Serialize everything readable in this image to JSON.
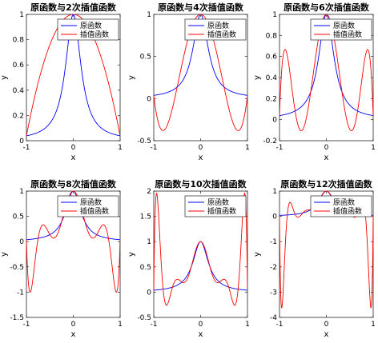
{
  "figure": {
    "function": "1/(1+25x^2)"
  },
  "legend": {
    "original": "原函数",
    "interp": "插值函数"
  },
  "colors": {
    "original": "#0000ff",
    "interp": "#ff0000",
    "axis": "#262626"
  },
  "chart_data": [
    {
      "type": "line",
      "title": "原函数与2次插值函数",
      "degree": 2,
      "xlabel": "x",
      "ylabel": "y",
      "xlim": [
        -1,
        1
      ],
      "ylim": [
        0,
        1
      ],
      "xticks": [
        -1,
        0,
        1
      ],
      "yticks": [
        0,
        0.2,
        0.4,
        0.6,
        0.8,
        1
      ],
      "xtick_labels": [
        "-1",
        "0",
        "1"
      ],
      "ytick_labels": [
        "0",
        "0.2",
        "0.4",
        "0.6",
        "0.8",
        "1"
      ],
      "legend_position": "top-right",
      "series": [
        {
          "name": "原函数",
          "color": "#0000ff"
        },
        {
          "name": "插值函数",
          "color": "#ff0000"
        }
      ]
    },
    {
      "type": "line",
      "title": "原函数与4次插值函数",
      "degree": 4,
      "xlabel": "x",
      "ylabel": "y",
      "xlim": [
        -1,
        1
      ],
      "ylim": [
        -0.5,
        1
      ],
      "xticks": [
        -1,
        0,
        1
      ],
      "yticks": [
        -0.5,
        0,
        0.5,
        1
      ],
      "xtick_labels": [
        "-1",
        "0",
        "1"
      ],
      "ytick_labels": [
        "-0.5",
        "0",
        "0.5",
        "1"
      ],
      "legend_position": "top-right",
      "series": [
        {
          "name": "原函数",
          "color": "#0000ff"
        },
        {
          "name": "插值函数",
          "color": "#ff0000"
        }
      ]
    },
    {
      "type": "line",
      "title": "原函数与6次插值函数",
      "degree": 6,
      "xlabel": "x",
      "ylabel": "y",
      "xlim": [
        -1,
        1
      ],
      "ylim": [
        -0.2,
        1
      ],
      "xticks": [
        -1,
        0,
        1
      ],
      "yticks": [
        -0.2,
        0,
        0.2,
        0.4,
        0.6,
        0.8,
        1
      ],
      "xtick_labels": [
        "-1",
        "0",
        "1"
      ],
      "ytick_labels": [
        "-0.2",
        "0",
        "0.2",
        "0.4",
        "0.6",
        "0.8",
        "1"
      ],
      "legend_position": "top-right",
      "series": [
        {
          "name": "原函数",
          "color": "#0000ff"
        },
        {
          "name": "插值函数",
          "color": "#ff0000"
        }
      ]
    },
    {
      "type": "line",
      "title": "原函数与8次插值函数",
      "degree": 8,
      "xlabel": "x",
      "ylabel": "y",
      "xlim": [
        -1,
        1
      ],
      "ylim": [
        -1.5,
        1
      ],
      "xticks": [
        -1,
        0,
        1
      ],
      "yticks": [
        -1.5,
        -1,
        -0.5,
        0,
        0.5,
        1
      ],
      "xtick_labels": [
        "-1",
        "0",
        "1"
      ],
      "ytick_labels": [
        "-1.5",
        "-1",
        "-0.5",
        "0",
        "0.5",
        "1"
      ],
      "legend_position": "top-right",
      "series": [
        {
          "name": "原函数",
          "color": "#0000ff"
        },
        {
          "name": "插值函数",
          "color": "#ff0000"
        }
      ]
    },
    {
      "type": "line",
      "title": "原函数与10次插值函数",
      "degree": 10,
      "xlabel": "x",
      "ylabel": "y",
      "xlim": [
        -1,
        1
      ],
      "ylim": [
        -0.5,
        2
      ],
      "xticks": [
        -1,
        0,
        1
      ],
      "yticks": [
        -0.5,
        0,
        0.5,
        1,
        1.5,
        2
      ],
      "xtick_labels": [
        "-1",
        "0",
        "1"
      ],
      "ytick_labels": [
        "-0.5",
        "0",
        "0.5",
        "1",
        "1.5",
        "2"
      ],
      "legend_position": "top-right",
      "series": [
        {
          "name": "原函数",
          "color": "#0000ff"
        },
        {
          "name": "插值函数",
          "color": "#ff0000"
        }
      ]
    },
    {
      "type": "line",
      "title": "原函数与12次插值函数",
      "degree": 12,
      "xlabel": "x",
      "ylabel": "y",
      "xlim": [
        -1,
        1
      ],
      "ylim": [
        -4,
        1
      ],
      "xticks": [
        -1,
        0,
        1
      ],
      "yticks": [
        -4,
        -3,
        -2,
        -1,
        0,
        1
      ],
      "xtick_labels": [
        "-1",
        "0",
        "1"
      ],
      "ytick_labels": [
        "-4",
        "-3",
        "-2",
        "-1",
        "0",
        "1"
      ],
      "legend_position": "top-right",
      "series": [
        {
          "name": "原函数",
          "color": "#0000ff"
        },
        {
          "name": "插值函数",
          "color": "#ff0000"
        }
      ]
    }
  ]
}
